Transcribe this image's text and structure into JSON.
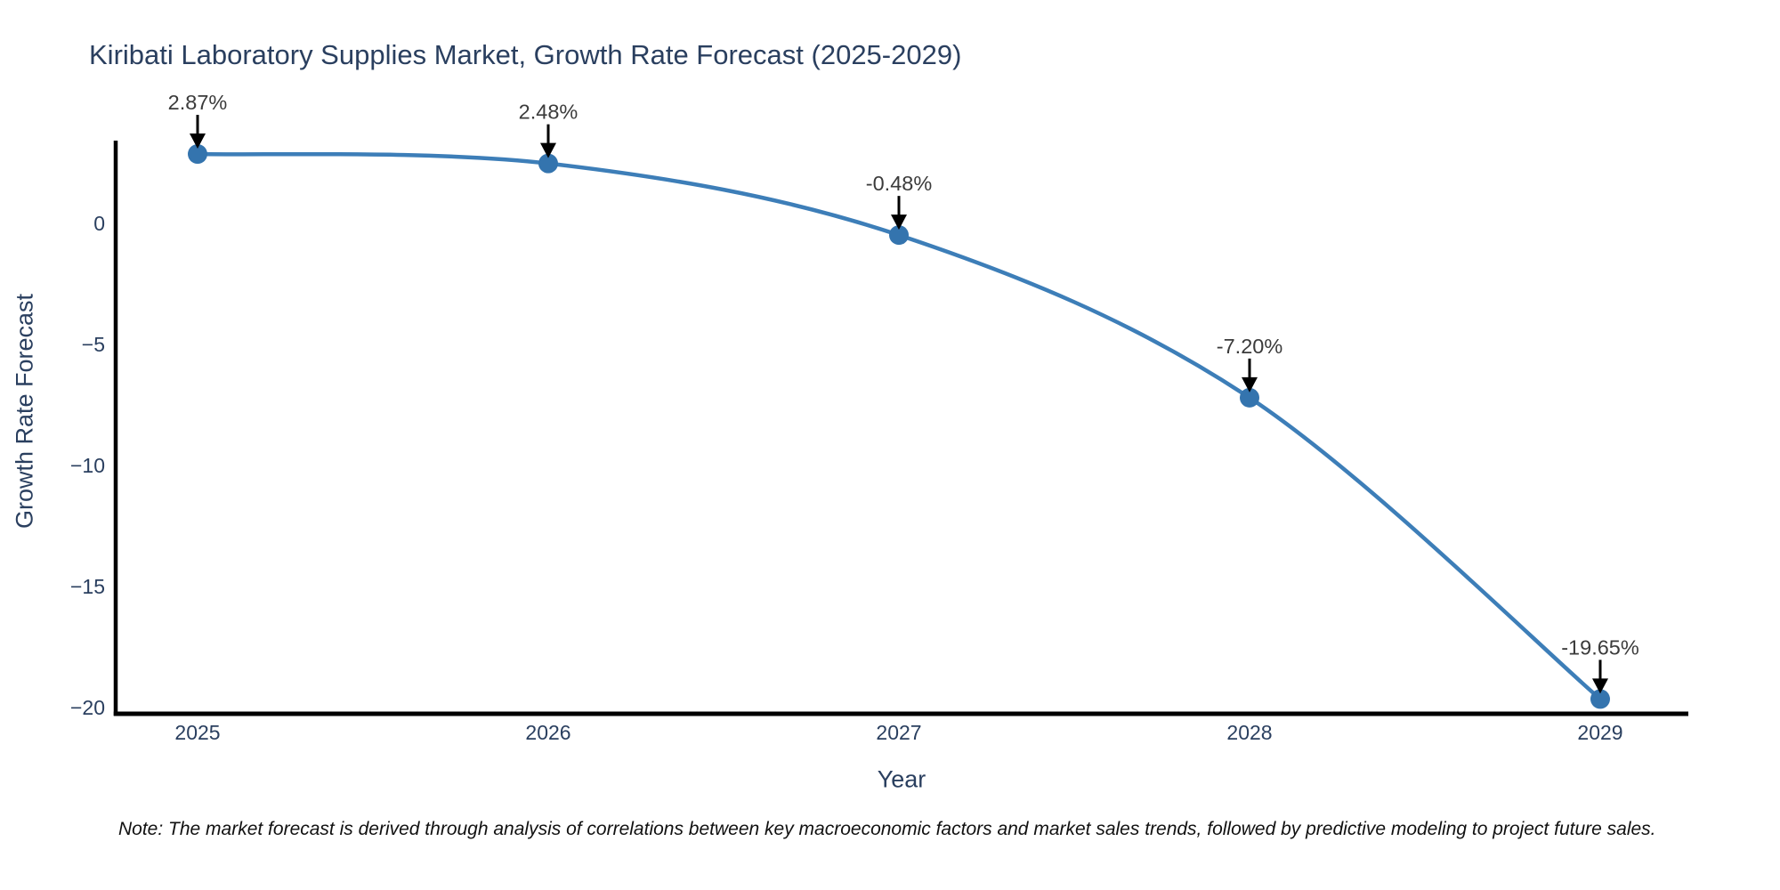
{
  "chart_data": {
    "type": "line",
    "title": "Kiribati Laboratory Supplies Market, Growth Rate Forecast (2025-2029)",
    "xlabel": "Year",
    "ylabel": "Growth Rate Forecast",
    "x": [
      "2025",
      "2026",
      "2027",
      "2028",
      "2029"
    ],
    "values": [
      2.87,
      2.48,
      -0.48,
      -7.2,
      -19.65
    ],
    "point_labels": [
      "2.87%",
      "2.48%",
      "-0.48%",
      "-7.20%",
      "-19.65%"
    ],
    "ylim": [
      3.35,
      -20.26
    ],
    "yticks": [
      0,
      -5,
      -10,
      -15,
      -20
    ],
    "ytick_labels": [
      "0",
      "−5",
      "−10",
      "−15",
      "−20"
    ],
    "line_shape": "spline",
    "grid": false,
    "legend": "none",
    "colors": {
      "line": "#3d7eb8",
      "marker": "#3474ae",
      "axis_line": "#000000",
      "axis_text": "#2a3f5f",
      "annotation_text": "#3b3b3b",
      "arrow": "#000000"
    }
  },
  "note": {
    "text": "Note: The market forecast is derived through analysis of correlations between key macroeconomic factors and market sales trends, followed by predictive modeling to project future sales."
  }
}
